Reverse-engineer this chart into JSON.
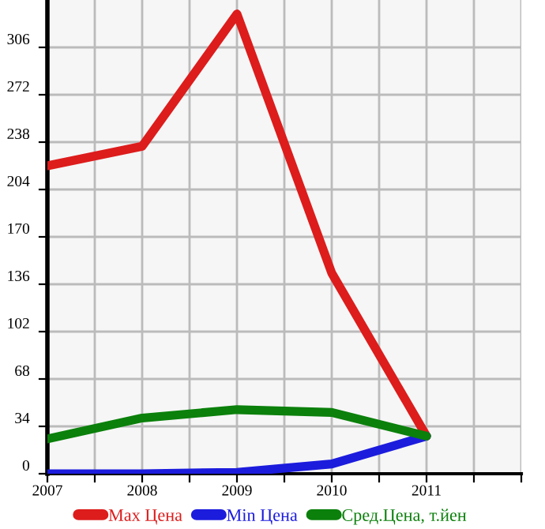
{
  "chart_data": {
    "type": "line",
    "x": [
      2007,
      2008,
      2009,
      2010,
      2011
    ],
    "series": [
      {
        "name": "Max Цена",
        "color": "#dd1c1c",
        "values": [
          221,
          235,
          330,
          144,
          27
        ]
      },
      {
        "name": "Min Цена",
        "color": "#1c1cdd",
        "values": [
          0,
          0,
          1,
          7,
          27
        ]
      },
      {
        "name": "Сред.Цена, т.йен",
        "color": "#0b800b",
        "values": [
          25,
          40,
          46,
          44,
          27
        ]
      }
    ],
    "xlim": [
      2007,
      2012
    ],
    "xticks": [
      2007,
      {
        "value": 2007.5,
        "label": null
      },
      2008,
      {
        "value": 2008.5,
        "label": null
      },
      2009,
      {
        "value": 2009.5,
        "label": null
      },
      2010,
      {
        "value": 2010.5,
        "label": null
      },
      2011,
      {
        "value": 2011.5,
        "label": null
      },
      {
        "value": 2012,
        "label": null
      }
    ],
    "ylim": [
      0,
      340
    ],
    "yticks": [
      0,
      34,
      68,
      102,
      136,
      170,
      204,
      238,
      272,
      306
    ],
    "grid": true,
    "legend": "bottom",
    "marker": "none",
    "line_style": "solid"
  }
}
